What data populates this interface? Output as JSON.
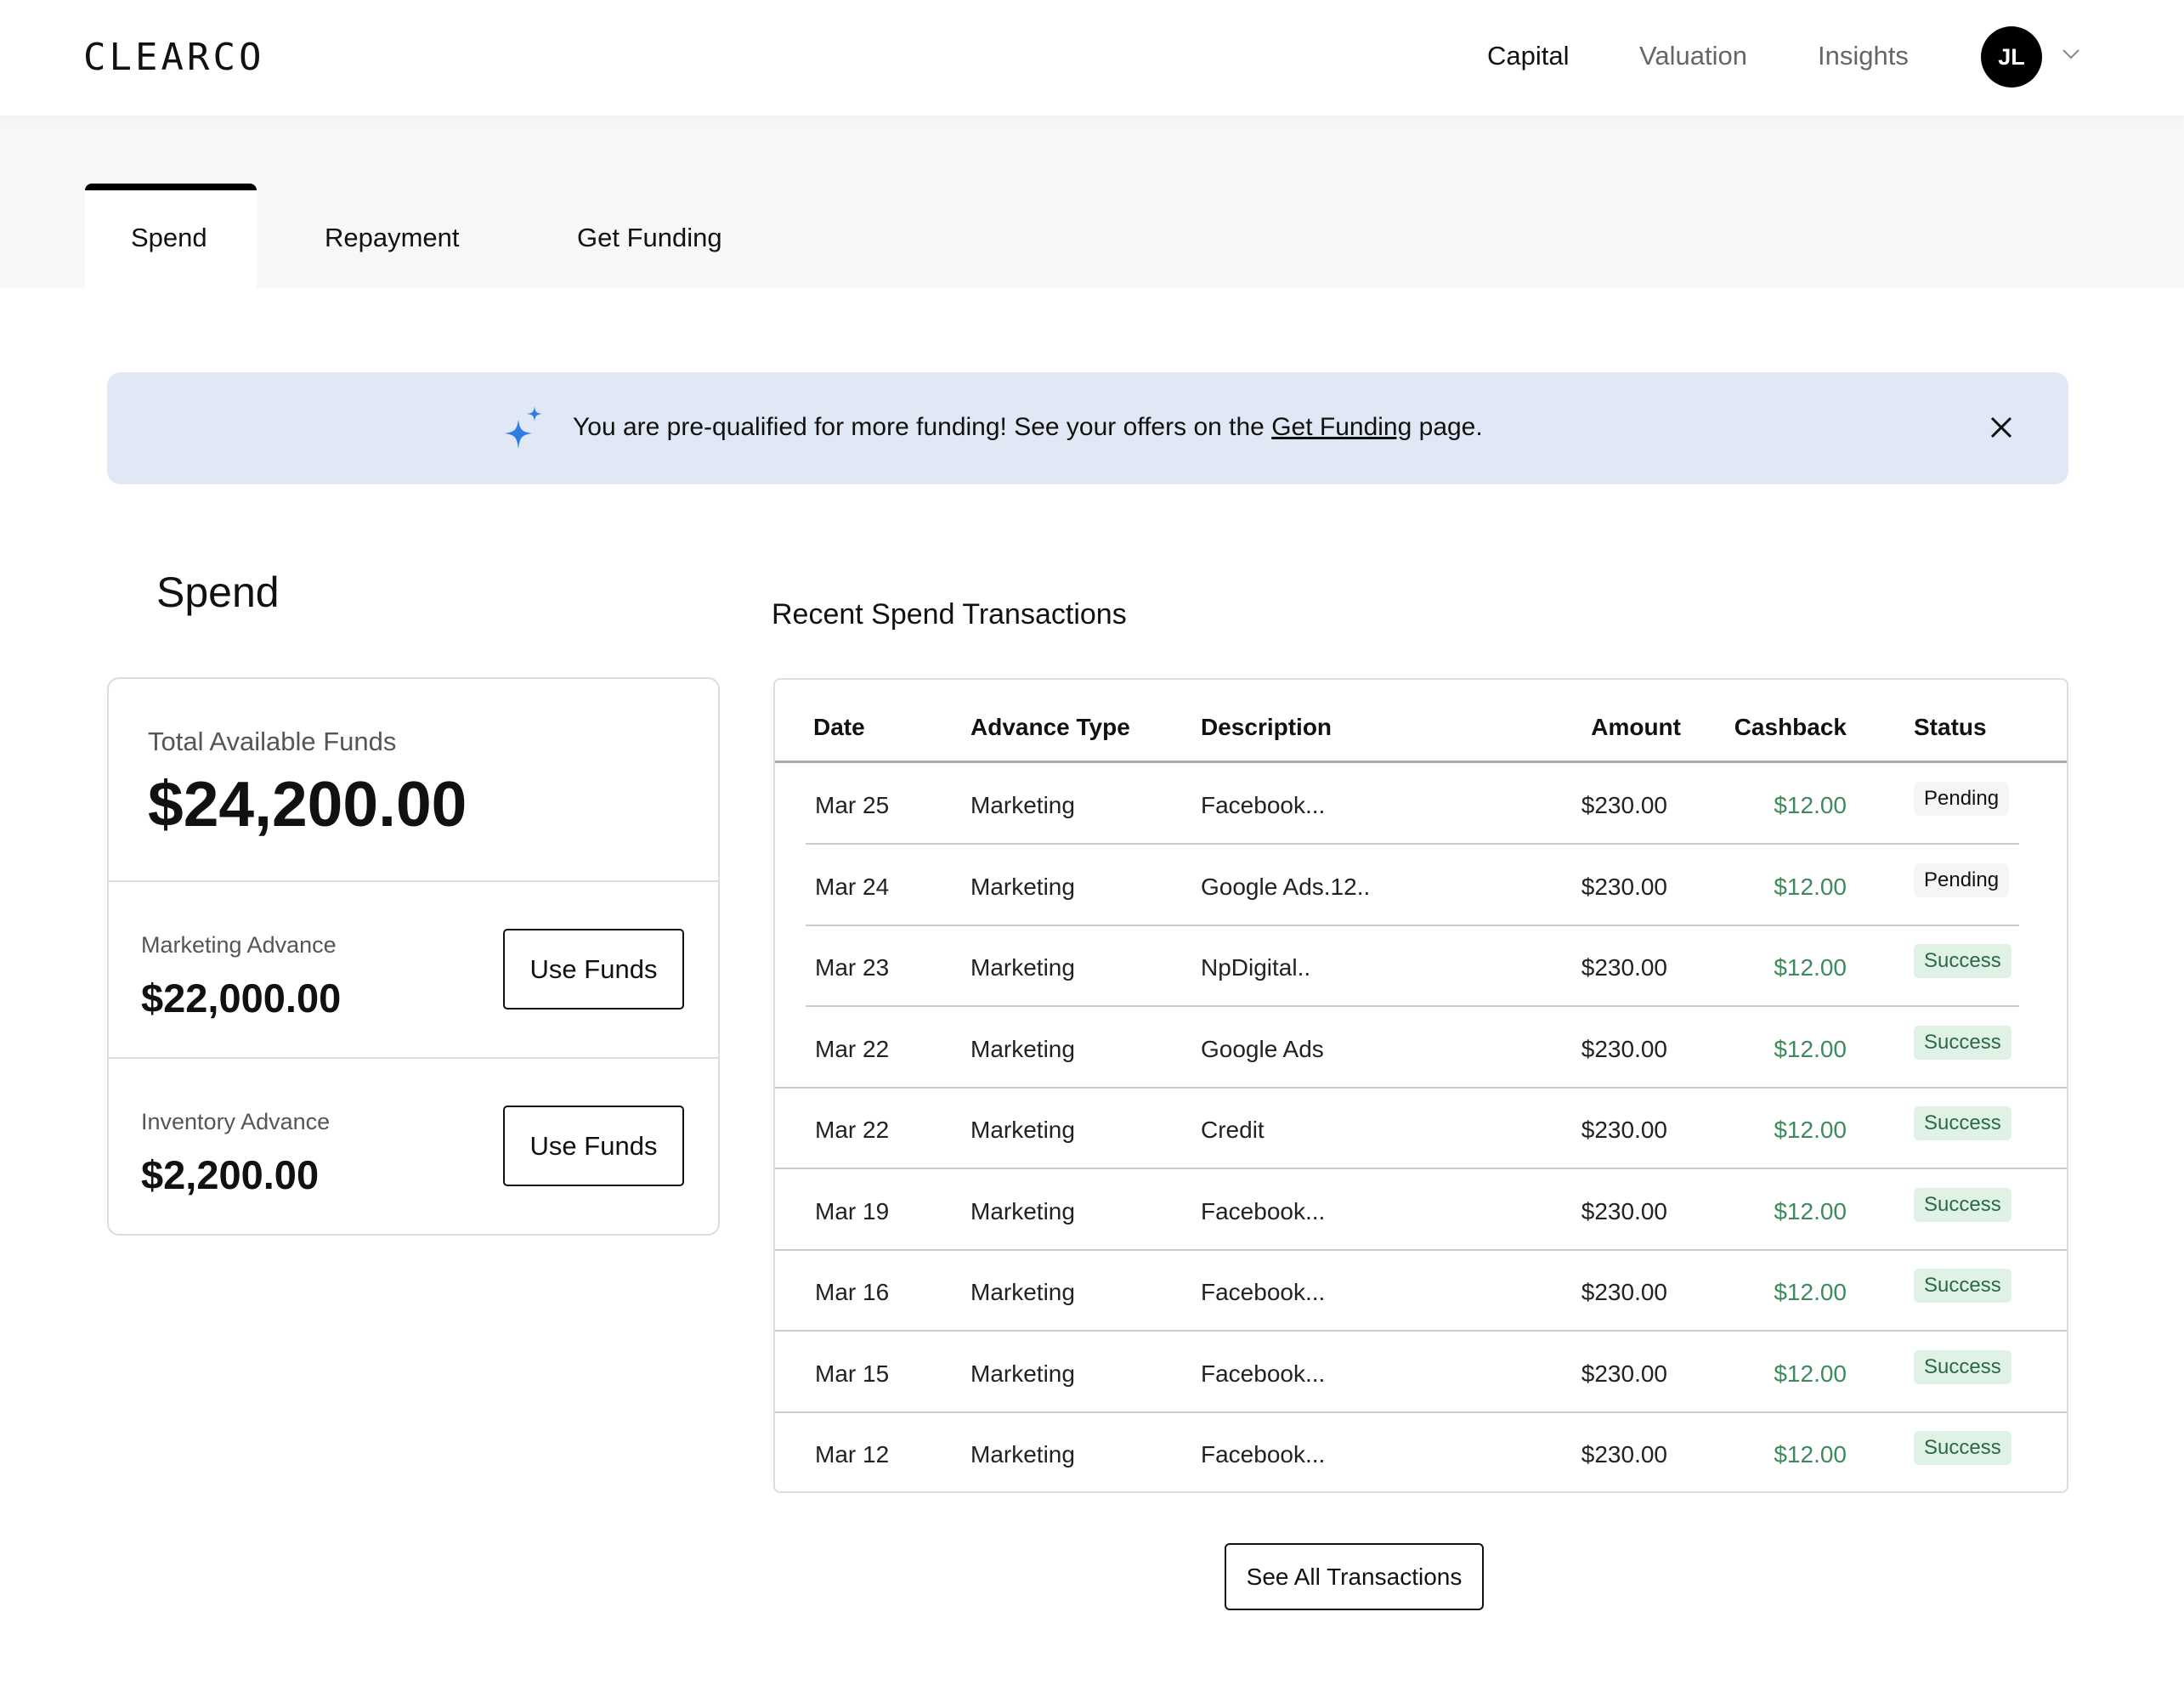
{
  "header": {
    "logo": "CLEARCO",
    "nav": [
      "Capital",
      "Valuation",
      "Insights"
    ],
    "active_nav": "Capital",
    "avatar_initials": "JL"
  },
  "tabs": {
    "items": [
      "Spend",
      "Repayment",
      "Get Funding"
    ],
    "active": "Spend"
  },
  "banner": {
    "text_before": "You are pre-qualified for more funding! See your offers on the ",
    "link": "Get Funding",
    "text_after": " page.",
    "accent": "#2f7de1"
  },
  "spend": {
    "title": "Spend",
    "total_label": "Total Available Funds",
    "total_value": "$24,200.00",
    "advances": [
      {
        "label": "Marketing Advance",
        "value": "$22,000.00",
        "button": "Use Funds"
      },
      {
        "label": "Inventory Advance",
        "value": "$2,200.00",
        "button": "Use Funds"
      }
    ]
  },
  "transactions": {
    "title": "Recent Spend Transactions",
    "columns": [
      "Date",
      "Advance Type",
      "Description",
      "Amount",
      "Cashback",
      "Status"
    ],
    "rows": [
      {
        "date": "Mar 25",
        "type": "Marketing",
        "description": "Facebook...",
        "amount": "$230.00",
        "cashback": "$12.00",
        "status": "Pending"
      },
      {
        "date": "Mar 24",
        "type": "Marketing",
        "description": "Google Ads.12..",
        "amount": "$230.00",
        "cashback": "$12.00",
        "status": "Pending"
      },
      {
        "date": "Mar 23",
        "type": "Marketing",
        "description": "NpDigital..",
        "amount": "$230.00",
        "cashback": "$12.00",
        "status": "Success"
      },
      {
        "date": "Mar 22",
        "type": "Marketing",
        "description": "Google Ads",
        "amount": "$230.00",
        "cashback": "$12.00",
        "status": "Success"
      },
      {
        "date": "Mar 22",
        "type": "Marketing",
        "description": "Credit",
        "amount": "$230.00",
        "cashback": "$12.00",
        "status": "Success"
      },
      {
        "date": "Mar 19",
        "type": "Marketing",
        "description": "Facebook...",
        "amount": "$230.00",
        "cashback": "$12.00",
        "status": "Success"
      },
      {
        "date": "Mar 16",
        "type": "Marketing",
        "description": "Facebook...",
        "amount": "$230.00",
        "cashback": "$12.00",
        "status": "Success"
      },
      {
        "date": "Mar 15",
        "type": "Marketing",
        "description": "Facebook...",
        "amount": "$230.00",
        "cashback": "$12.00",
        "status": "Success"
      },
      {
        "date": "Mar 12",
        "type": "Marketing",
        "description": "Facebook...",
        "amount": "$230.00",
        "cashback": "$12.00",
        "status": "Success"
      }
    ],
    "see_all": "See All Transactions",
    "colors": {
      "cashback": "#3d8a5c",
      "success_bg": "#dff2e5",
      "pending_bg": "#f4f5f7"
    }
  }
}
